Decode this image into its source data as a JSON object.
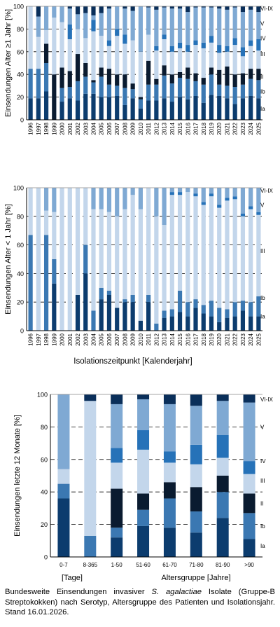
{
  "colors": {
    "Ia": "#0c3c6e",
    "Ib": "#3b78b2",
    "II": "#0a1b30",
    "III": "#c3d6eb",
    "IV": "#2672b8",
    "V": "#7fa9d3",
    "VI-IX": "#0a2f5a"
  },
  "chart_data": [
    {
      "type": "bar",
      "stacked": true,
      "title": "",
      "xlabel": "",
      "ylabel": "Einsendungen Alter ≥1 Jahr [%]",
      "ylim": [
        0,
        100
      ],
      "yticks": [
        0,
        20,
        40,
        60,
        80,
        100
      ],
      "grid": "dashed-horizontal",
      "legend": "right-side labels",
      "categories": [
        "1996",
        "1997",
        "1998",
        "1999",
        "2000",
        "2001",
        "2002",
        "2003",
        "2004",
        "2005",
        "2006",
        "2007",
        "2008",
        "2009",
        "2010",
        "2011",
        "2012",
        "2013",
        "2014",
        "2015",
        "2016",
        "2017",
        "2018",
        "2019",
        "2020",
        "2021",
        "2022",
        "2023",
        "2024",
        "2025"
      ],
      "series": [
        {
          "name": "Ia",
          "values": [
            19,
            19,
            25,
            0,
            16,
            19,
            17,
            23,
            23,
            20,
            20,
            21,
            13,
            19,
            10,
            17,
            17,
            19,
            16,
            20,
            18,
            21,
            15,
            22,
            21,
            19,
            14,
            19,
            21,
            19
          ]
        },
        {
          "name": "Ib",
          "values": [
            26,
            26,
            25,
            0,
            12,
            10,
            17,
            15,
            10,
            18,
            11,
            9,
            15,
            8,
            8,
            14,
            14,
            20,
            16,
            17,
            18,
            13,
            16,
            18,
            10,
            11,
            15,
            12,
            15,
            16
          ]
        },
        {
          "name": "II",
          "values": [
            0,
            0,
            17,
            40,
            18,
            14,
            24,
            12,
            2,
            8,
            14,
            10,
            12,
            5,
            2,
            21,
            5,
            9,
            8,
            5,
            10,
            7,
            6,
            6,
            13,
            17,
            11,
            10,
            9,
            10
          ]
        },
        {
          "name": "III",
          "values": [
            55,
            28,
            12,
            50,
            40,
            28,
            22,
            22,
            43,
            28,
            20,
            34,
            27,
            38,
            40,
            23,
            25,
            23,
            20,
            21,
            14,
            25,
            26,
            22,
            15,
            13,
            26,
            15,
            20,
            16
          ]
        },
        {
          "name": "IV",
          "values": [
            0,
            0,
            0,
            0,
            0,
            13,
            0,
            0,
            10,
            0,
            5,
            6,
            8,
            0,
            0,
            0,
            4,
            4,
            5,
            5,
            6,
            4,
            5,
            6,
            7,
            5,
            6,
            8,
            5,
            10
          ]
        },
        {
          "name": "V",
          "values": [
            0,
            18,
            21,
            10,
            14,
            14,
            13,
            22,
            4,
            20,
            28,
            20,
            23,
            26,
            40,
            24,
            32,
            24,
            33,
            30,
            29,
            29,
            31,
            25,
            32,
            32,
            27,
            31,
            27,
            24
          ]
        },
        {
          "name": "VI-IX",
          "values": [
            0,
            9,
            0,
            0,
            0,
            2,
            7,
            6,
            8,
            6,
            2,
            0,
            2,
            4,
            0,
            1,
            3,
            1,
            2,
            2,
            5,
            1,
            1,
            1,
            2,
            3,
            1,
            5,
            3,
            5
          ]
        }
      ]
    },
    {
      "type": "bar",
      "stacked": true,
      "title": "",
      "xlabel": "Isolationszeitpunkt [Kalenderjahr]",
      "ylabel": "Einsendungen Alter < 1 Jahr [%]",
      "ylim": [
        0,
        100
      ],
      "yticks": [
        0,
        20,
        40,
        60,
        80,
        100
      ],
      "grid": "dashed-horizontal",
      "legend": "right-side labels",
      "categories": [
        "1996",
        "1997",
        "1998",
        "1999",
        "2000",
        "2001",
        "2002",
        "2003",
        "2004",
        "2005",
        "2006",
        "2007",
        "2008",
        "2009",
        "2010",
        "2011",
        "2012",
        "2013",
        "2014",
        "2015",
        "2016",
        "2017",
        "2018",
        "2019",
        "2020",
        "2021",
        "2022",
        "2023",
        "2024",
        "2025"
      ],
      "series": [
        {
          "name": "Ia",
          "values": [
            0,
            0,
            0,
            33,
            0,
            0,
            25,
            40,
            0,
            22,
            25,
            16,
            20,
            20,
            7,
            20,
            0,
            9,
            10,
            13,
            10,
            16,
            12,
            10,
            6,
            9,
            10,
            14,
            10,
            10
          ]
        },
        {
          "name": "Ib",
          "values": [
            67,
            0,
            67,
            17,
            0,
            0,
            0,
            20,
            14,
            8,
            3,
            0,
            2,
            5,
            0,
            5,
            5,
            5,
            5,
            15,
            10,
            6,
            6,
            11,
            10,
            6,
            10,
            7,
            10,
            14
          ]
        },
        {
          "name": "II",
          "values": [
            0,
            0,
            0,
            0,
            0,
            0,
            0,
            0,
            0,
            0,
            0,
            0,
            0,
            0,
            0,
            0,
            0,
            0,
            0,
            0,
            0,
            0,
            0,
            0,
            0,
            0,
            0,
            0,
            0,
            0
          ]
        },
        {
          "name": "III",
          "values": [
            33,
            100,
            17,
            33,
            100,
            100,
            75,
            40,
            71,
            55,
            55,
            64,
            63,
            70,
            78,
            75,
            75,
            60,
            80,
            67,
            77,
            72,
            70,
            73,
            70,
            76,
            72,
            59,
            65,
            57
          ]
        },
        {
          "name": "IV",
          "values": [
            0,
            0,
            0,
            0,
            0,
            0,
            0,
            0,
            0,
            0,
            0,
            0,
            0,
            0,
            0,
            0,
            0,
            0,
            2,
            2,
            0,
            2,
            2,
            2,
            2,
            2,
            2,
            2,
            2,
            2
          ]
        },
        {
          "name": "V",
          "values": [
            0,
            0,
            16,
            17,
            0,
            0,
            0,
            0,
            15,
            15,
            17,
            20,
            15,
            5,
            15,
            0,
            20,
            26,
            3,
            3,
            3,
            4,
            10,
            4,
            12,
            7,
            6,
            18,
            13,
            17
          ]
        },
        {
          "name": "VI-IX",
          "values": [
            0,
            0,
            0,
            0,
            0,
            0,
            0,
            0,
            0,
            0,
            0,
            0,
            0,
            0,
            0,
            0,
            0,
            0,
            0,
            0,
            0,
            0,
            0,
            0,
            0,
            0,
            0,
            0,
            0,
            0
          ]
        }
      ]
    },
    {
      "type": "bar",
      "stacked": true,
      "title": "",
      "xlabel": "Altersgruppe [Jahre]",
      "xlabel_left": "[Tage]",
      "ylabel": "Einsendungen letzte 12 Monate [%]",
      "ylim": [
        0,
        100
      ],
      "yticks": [
        0,
        20,
        40,
        60,
        80,
        100
      ],
      "grid": "dashed-horizontal",
      "legend": "right-side labels",
      "categories": [
        "0-7",
        "8-365",
        "1-50",
        "51-60",
        "61-70",
        "71-80",
        "81-90",
        ">90"
      ],
      "series": [
        {
          "name": "Ia",
          "values": [
            36,
            0,
            12,
            19,
            18,
            15,
            24,
            11
          ]
        },
        {
          "name": "Ib",
          "values": [
            9,
            13,
            6,
            10,
            18,
            13,
            16,
            16
          ]
        },
        {
          "name": "II",
          "values": [
            0,
            0,
            24,
            10,
            10,
            15,
            10,
            12
          ]
        },
        {
          "name": "III",
          "values": [
            9,
            83,
            16,
            27,
            12,
            14,
            11,
            12
          ]
        },
        {
          "name": "IV",
          "values": [
            0,
            0,
            9,
            12,
            7,
            12,
            14,
            8
          ]
        },
        {
          "name": "V",
          "values": [
            46,
            0,
            27,
            19,
            29,
            24,
            21,
            36
          ]
        },
        {
          "name": "VI-IX",
          "values": [
            0,
            4,
            6,
            3,
            6,
            7,
            4,
            5
          ]
        }
      ]
    }
  ],
  "right_labels": [
    [
      {
        "text": "VI-IX",
        "y": 98
      },
      {
        "text": "V",
        "y": 85
      },
      {
        "text": "IV",
        "y": 72
      },
      {
        "text": "III",
        "y": 58
      },
      {
        "text": "II",
        "y": 38
      },
      {
        "text": "Ib",
        "y": 25
      },
      {
        "text": "Ia",
        "y": 10
      }
    ],
    [
      {
        "text": "VI-IX",
        "y": 98
      },
      {
        "text": "V",
        "y": 88
      },
      {
        "text": "III",
        "y": 56
      },
      {
        "text": "Ib",
        "y": 23
      },
      {
        "text": "Ia",
        "y": 10
      }
    ],
    [
      {
        "text": "VI-IX",
        "y": 97
      },
      {
        "text": "V",
        "y": 80
      },
      {
        "text": "IV",
        "y": 59
      },
      {
        "text": "III",
        "y": 47
      },
      {
        "text": "II",
        "y": 33
      },
      {
        "text": "Ib",
        "y": 19
      },
      {
        "text": "Ia",
        "y": 7
      }
    ]
  ],
  "caption": {
    "pre": "Bundesweite Einsendungen invasiver ",
    "species": "S. agalactiae",
    "post": " Isolate (Gruppe-B Streptokokken) nach Serotyp, Altersgruppe des Patienten und Isolationsjahr. Stand 16.01.2026."
  }
}
